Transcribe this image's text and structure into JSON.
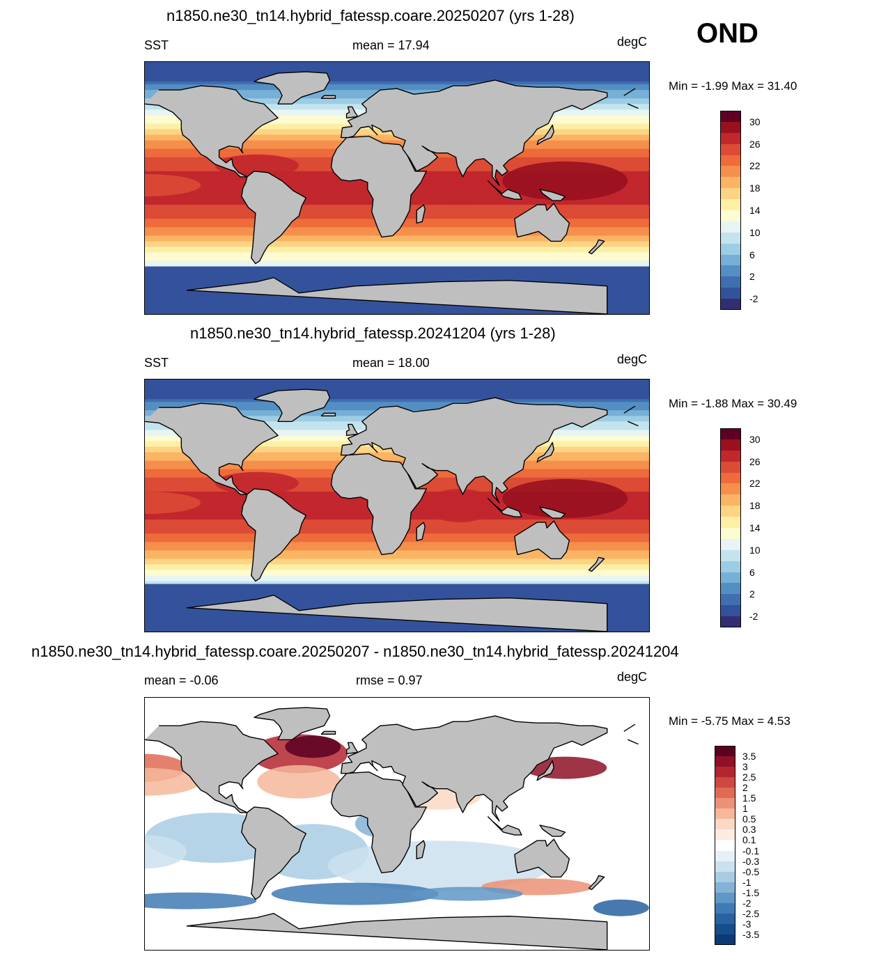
{
  "season": "OND",
  "panels": [
    {
      "title": "n1850.ne30_tn14.hybrid_fatessp.coare.20250207 (yrs 1-28)",
      "left_label": "SST",
      "center_label": "mean =  17.94",
      "units": "degC",
      "minmax": "Min =  -1.99 Max =  31.40",
      "colorbar_ticks": [
        "30",
        "26",
        "22",
        "18",
        "14",
        "10",
        "6",
        "2",
        "-2"
      ]
    },
    {
      "title": "n1850.ne30_tn14.hybrid_fatessp.20241204 (yrs 1-28)",
      "left_label": "SST",
      "center_label": "mean =  18.00",
      "units": "degC",
      "minmax": "Min =  -1.88 Max =  30.49",
      "colorbar_ticks": [
        "30",
        "26",
        "22",
        "18",
        "14",
        "10",
        "6",
        "2",
        "-2"
      ]
    },
    {
      "title": "n1850.ne30_tn14.hybrid_fatessp.coare.20250207 - n1850.ne30_tn14.hybrid_fatessp.20241204",
      "left_label": "mean =  -0.06",
      "center_label": "rmse =   0.97",
      "units": "degC",
      "minmax": "Min =  -5.75 Max =   4.53",
      "colorbar_ticks": [
        "3.5",
        "3",
        "2.5",
        "2",
        "1.5",
        "1",
        "0.5",
        "0.3",
        "0.1",
        "-0.1",
        "-0.3",
        "-0.5",
        "-1",
        "-1.5",
        "-2",
        "-2.5",
        "-3",
        "-3.5"
      ]
    }
  ],
  "colors": {
    "land": "#bfbfbf",
    "sst_scale": [
      "#5e0021",
      "#99111f",
      "#c1272d",
      "#dc4b35",
      "#ee6b3b",
      "#f58f4c",
      "#fbb463",
      "#fdd483",
      "#fdf0a6",
      "#fdfbd2",
      "#e6f4f3",
      "#c3e4ee",
      "#9dcde4",
      "#76b0d6",
      "#548fc3",
      "#3f6fb0",
      "#34529c",
      "#312e72"
    ],
    "diff_scale": [
      "#5b0022",
      "#8f1027",
      "#b42430",
      "#cc4840",
      "#de6b55",
      "#ec9276",
      "#f5b89b",
      "#fad8c3",
      "#fdebe0",
      "#ffffff",
      "#e6f0f7",
      "#cbe1ef",
      "#a9cce4",
      "#84b3d6",
      "#5f97c6",
      "#3f7ab4",
      "#2862a0",
      "#164d8d",
      "#0b3a74"
    ]
  }
}
